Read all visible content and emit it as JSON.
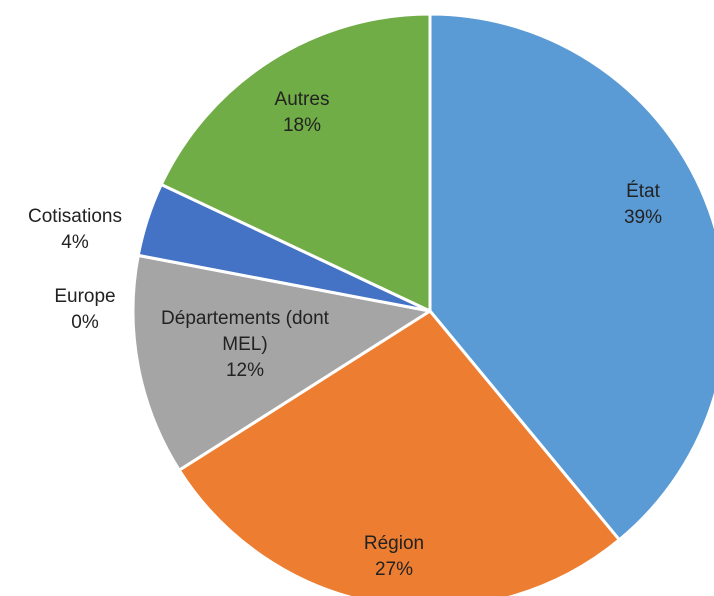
{
  "chart_data": {
    "type": "pie",
    "categories": [
      "État",
      "Région",
      "Départements (dont MEL)",
      "Europe",
      "Cotisations",
      "Autres"
    ],
    "values": [
      39,
      27,
      12,
      0,
      4,
      18
    ],
    "value_labels": [
      "39%",
      "27%",
      "12%",
      "0%",
      "4%",
      "18%"
    ],
    "colors": [
      "#5b9bd5",
      "#ed7d31",
      "#a5a5a5",
      "#ffc000",
      "#4472c4",
      "#70ad47"
    ]
  }
}
